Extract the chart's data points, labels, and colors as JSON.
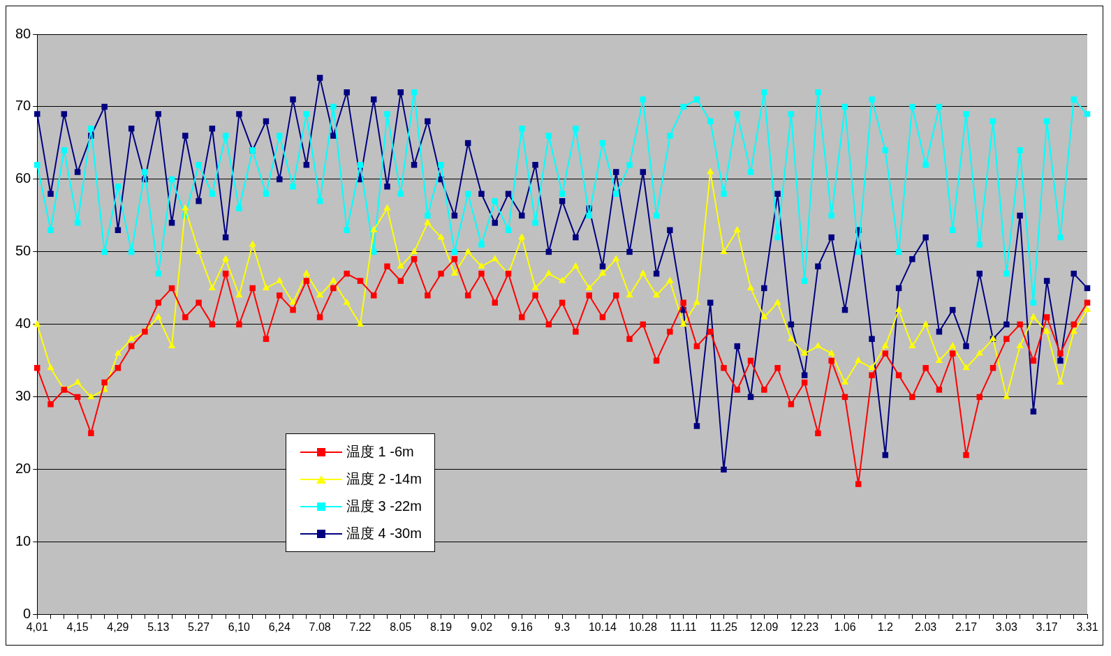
{
  "chart_data": {
    "type": "line",
    "categories": [
      "4,01",
      null,
      null,
      "4,15",
      null,
      null,
      "4,29",
      null,
      null,
      "5.13",
      null,
      null,
      "5.27",
      null,
      null,
      "6,10",
      null,
      null,
      "6,24",
      null,
      null,
      "7.08",
      null,
      null,
      "7.22",
      null,
      null,
      "8.05",
      null,
      null,
      "8.19",
      null,
      null,
      "9.02",
      null,
      null,
      "9.16",
      null,
      null,
      "9.3",
      null,
      null,
      "10.14",
      null,
      null,
      "10.28",
      null,
      null,
      "11.11",
      null,
      null,
      "11.25",
      null,
      null,
      "12.09",
      null,
      null,
      "12.23",
      null,
      null,
      "1.06",
      null,
      null,
      "1.2",
      null,
      null,
      "2.03",
      null,
      null,
      "2.17",
      null,
      null,
      "3.03",
      null,
      null,
      "3.17",
      null,
      null,
      "3.31"
    ],
    "series": [
      {
        "name": "温度 1 -6m",
        "color": "#ff0000",
        "marker": "square",
        "values": [
          34,
          29,
          31,
          30,
          25,
          32,
          34,
          37,
          39,
          43,
          45,
          41,
          43,
          40,
          47,
          40,
          45,
          38,
          44,
          42,
          46,
          41,
          45,
          47,
          46,
          44,
          48,
          46,
          49,
          44,
          47,
          49,
          44,
          47,
          43,
          47,
          41,
          44,
          40,
          43,
          39,
          44,
          41,
          44,
          38,
          40,
          35,
          39,
          43,
          37,
          39,
          34,
          31,
          35,
          31,
          34,
          29,
          32,
          25,
          35,
          30,
          18,
          33,
          36,
          33,
          30,
          34,
          31,
          36,
          22,
          30,
          34,
          38,
          40,
          35,
          41,
          36,
          40,
          43
        ]
      },
      {
        "name": "温度 2 -14m",
        "color": "#ffff00",
        "marker": "triangle",
        "values": [
          40,
          34,
          31,
          32,
          30,
          31,
          36,
          38,
          39,
          41,
          37,
          56,
          50,
          45,
          49,
          44,
          51,
          45,
          46,
          43,
          47,
          44,
          46,
          43,
          40,
          53,
          56,
          48,
          50,
          54,
          52,
          47,
          50,
          48,
          49,
          47,
          52,
          45,
          47,
          46,
          48,
          45,
          47,
          49,
          44,
          47,
          44,
          46,
          40,
          43,
          61,
          50,
          53,
          45,
          41,
          43,
          38,
          36,
          37,
          36,
          32,
          35,
          34,
          37,
          42,
          37,
          40,
          35,
          37,
          34,
          36,
          38,
          30,
          37,
          41,
          39,
          32,
          39,
          42
        ]
      },
      {
        "name": "温度 3 -22m",
        "color": "#00ffff",
        "marker": "square",
        "values": [
          62,
          53,
          64,
          54,
          67,
          50,
          59,
          50,
          61,
          47,
          60,
          55,
          62,
          58,
          66,
          56,
          64,
          58,
          66,
          59,
          69,
          57,
          70,
          53,
          62,
          50,
          69,
          58,
          72,
          55,
          62,
          50,
          58,
          51,
          57,
          53,
          67,
          54,
          66,
          58,
          67,
          55,
          65,
          58,
          62,
          71,
          55,
          66,
          70,
          71,
          68,
          58,
          69,
          61,
          72,
          52,
          69,
          46,
          72,
          55,
          70,
          50,
          71,
          64,
          50,
          70,
          62,
          70,
          53,
          69,
          51,
          68,
          47,
          64,
          43,
          68,
          52,
          71,
          69
        ]
      },
      {
        "name": "温度 4 -30m",
        "color": "#000080",
        "marker": "square",
        "values": [
          69,
          58,
          69,
          61,
          66,
          70,
          53,
          67,
          60,
          69,
          54,
          66,
          57,
          67,
          52,
          69,
          64,
          68,
          60,
          71,
          62,
          74,
          66,
          72,
          60,
          71,
          59,
          72,
          62,
          68,
          60,
          55,
          65,
          58,
          54,
          58,
          55,
          62,
          50,
          57,
          52,
          56,
          48,
          61,
          50,
          61,
          47,
          53,
          42,
          26,
          43,
          20,
          37,
          30,
          45,
          58,
          40,
          33,
          48,
          52,
          42,
          53,
          38,
          22,
          45,
          49,
          52,
          39,
          42,
          37,
          47,
          38,
          40,
          55,
          28,
          46,
          35,
          47,
          45
        ]
      }
    ],
    "ylim": [
      0,
      80
    ],
    "yticks": [
      0,
      10,
      20,
      30,
      40,
      50,
      60,
      70,
      80
    ],
    "grid": "y",
    "legend": "bottom left"
  }
}
